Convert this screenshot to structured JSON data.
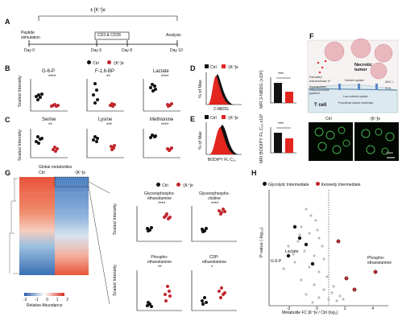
{
  "panels": {
    "A": "A",
    "B": "B",
    "C": "C",
    "D": "D",
    "E": "E",
    "F": "F",
    "G": "G",
    "H": "H"
  },
  "timeline": {
    "treatment": "± [K⁺]e",
    "day0_label": "Peptide\nstimulation",
    "day0": "Day 0",
    "day6": "Day 6",
    "day8": "Day 8",
    "day10": "Day 10",
    "cd_label": "CD3 & CD28",
    "analysis": "Analysis"
  },
  "legend": {
    "ctrl": "Ctrl",
    "k": "↑[K⁺]e"
  },
  "colors": {
    "ctrl": "#111111",
    "k": "#c0272d",
    "red_fill": "#e3251f"
  },
  "panel_B": {
    "ylabel": "Scaled Intensity",
    "plots": [
      {
        "title": "G-6-P",
        "sig": "****"
      },
      {
        "title": "F-1,6-BP",
        "sig": "**"
      },
      {
        "title": "Lactate",
        "sig": "****"
      }
    ]
  },
  "panel_C": {
    "ylabel": "Scaled Intensity",
    "plots": [
      {
        "title": "Serine",
        "sig": "**"
      },
      {
        "title": "Lysine",
        "sig": "***"
      },
      {
        "title": "Methionine",
        "sig": "****"
      }
    ]
  },
  "panel_D": {
    "xlabel": "2-NBDG",
    "ylabel": "% of Max",
    "bar_ylabel": "MFI 2-NBDG (x10²)",
    "sig": "***",
    "bar_ticks": [
      "0",
      "2",
      "4",
      "6",
      "8"
    ]
  },
  "panel_E": {
    "xlabel": "BODIPY FL C₁₆",
    "ylabel": "% of Max",
    "bar_ylabel": "MFI BODIPY FL C₁₆ x10³",
    "sig": "***",
    "bar_ticks": [
      "0",
      "5",
      "10",
      "15"
    ]
  },
  "panel_F": {
    "necrotic": "Necrotic\ntumor",
    "elevated": "Elevated\nextracellular K⁺",
    "dysregulated": "Dysregulated\nelectrochemical\ngradient",
    "nutrient": "Nutrient uptake",
    "tcr": "TCR",
    "mhc": "MHC I",
    "low_uptake": "Low nutrient uptake",
    "functional": "Functional caloric restriction",
    "tcell": "T cell",
    "ctrl": "Ctrl",
    "k": "↑[K⁺]e",
    "scale": "10μm"
  },
  "panel_G": {
    "title": "Global metabolites",
    "ctrl": "Ctrl",
    "k": "↑[K⁺]e",
    "colorbar_ticks": [
      "-2",
      "-1",
      "0",
      "1",
      "2"
    ],
    "colorbar_label": "Relative Abundance",
    "ylabel": "Scaled Intensity",
    "plots": [
      {
        "title": "Glycerophospho-\nethanolamine",
        "sig": "****"
      },
      {
        "title": "Glycerophospho-\ncholine",
        "sig": "****"
      },
      {
        "title": "Phospho-\nethanolamine",
        "sig": "**"
      },
      {
        "title": "CDP-\nethanolamine",
        "sig": "*"
      }
    ]
  },
  "panel_H": {
    "legend": [
      "Glycolytic Intermediate",
      "Kennedy Intermediate"
    ],
    "ylabel": "P-value (-log₁₀)",
    "xlabel": "Metabolite FC [K⁺]e / Ctrl (log₂)",
    "xticks": [
      "-2",
      "0",
      "2",
      "4"
    ],
    "yticks": [
      "0",
      "2",
      "4",
      "6",
      "8",
      "10"
    ],
    "labels": {
      "lactate": "Lactate",
      "g6p": "G-6-P",
      "pe": "Phospho-\nethanolamine"
    }
  }
}
